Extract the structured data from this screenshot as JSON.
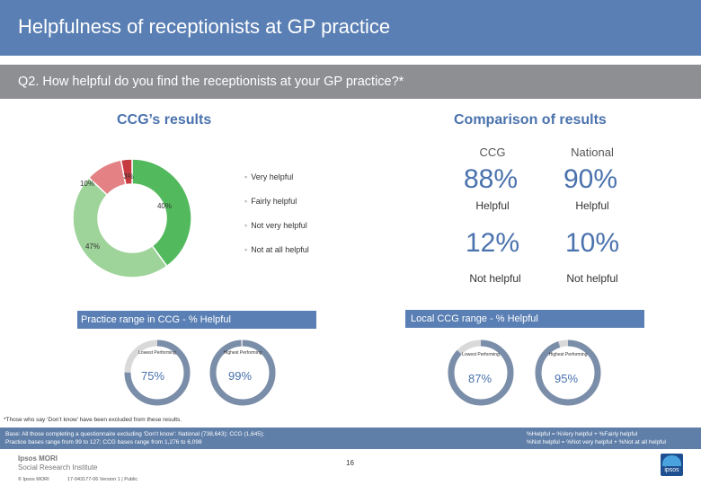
{
  "header": {
    "title": "Helpfulness of receptionists at GP practice"
  },
  "question": {
    "text": "Q2. How helpful do you find the receptionists at your GP practice?*"
  },
  "ccg_results": {
    "title": "CCG’s results",
    "donut": {
      "segments": [
        {
          "name": "Very helpful",
          "value": 40,
          "label": "40%",
          "color": "#52b95d"
        },
        {
          "name": "Fairly helpful",
          "value": 47,
          "label": "47%",
          "color": "#9ed39a"
        },
        {
          "name": "Not very helpful",
          "value": 10,
          "label": "10%",
          "color": "#e38184"
        },
        {
          "name": "Not at all helpful",
          "value": 3,
          "label": "3%",
          "color": "#c63b3f"
        }
      ]
    },
    "legend": [
      "Very helpful",
      "Fairly helpful",
      "Not very helpful",
      "Not at all helpful"
    ],
    "legend_bullet": "▪"
  },
  "comparison": {
    "title": "Comparison of results",
    "col_ccg": "CCG",
    "col_national": "National",
    "helpful": {
      "ccg": "88%",
      "national": "90%",
      "label": "Helpful"
    },
    "not_helpful": {
      "ccg": "12%",
      "national": "10%",
      "label": "Not helpful"
    }
  },
  "practice_range": {
    "title": "Practice range in CCG - % Helpful",
    "lowest_label": "Lowest Performing",
    "highest_label": "Highest Performing",
    "lowest_value": "75%",
    "highest_value": "99%",
    "lowest_fraction": 0.75,
    "highest_fraction": 0.99
  },
  "local_range": {
    "title": "Local CCG range - % Helpful",
    "lowest_label": "Lowest Performing",
    "highest_label": "Highest Performing",
    "lowest_value": "87%",
    "highest_value": "95%",
    "lowest_fraction": 0.87,
    "highest_fraction": 0.95
  },
  "footnote": "*Those who say ‘Don’t know’ have been excluded from these results.",
  "base": {
    "line1": "Base: All those completing a questionnaire excluding ‘Don’t know’: National (738,643); CCG (1,645);",
    "line2": "Practice bases range from 99 to 127; CCG bases range from 1,276 to 6,098"
  },
  "definitions": {
    "line1": "%Helpful = %Very helpful + %Fairly helpful",
    "line2": "%Not helpful = %Not very helpful + %Not at all helpful"
  },
  "branding": {
    "line1": "Ipsos MORI",
    "line2": "Social Research Institute",
    "copyright": "© Ipsos MORI",
    "job": "17-043177-06 Version 1 | Public",
    "logo": "ipsos"
  },
  "page_number": "16",
  "colors": {
    "accent": "#4a72ad",
    "title_bar": "#5a7fb4",
    "question_bar": "#8d8f93",
    "ring_fill": "#7a8ea9",
    "ring_track": "#d9d9d9"
  }
}
